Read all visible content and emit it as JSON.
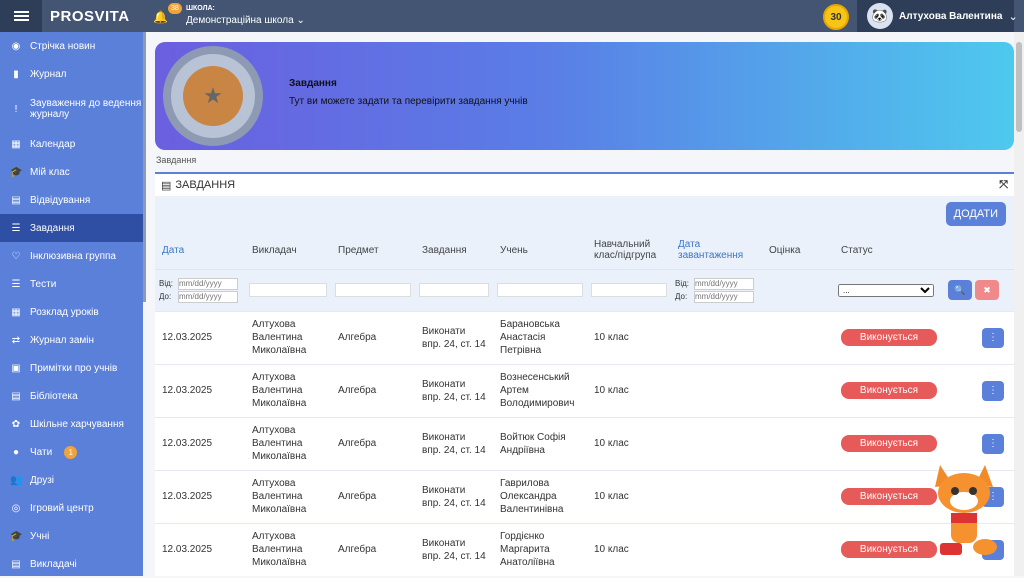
{
  "header": {
    "logo": "PROSVITA",
    "notifications": "38",
    "school_label": "ШКОЛА:",
    "school": "Демонстраційна школа",
    "coins": "30",
    "user": "Алтухова Валентина"
  },
  "sidebar": {
    "items": [
      {
        "label": "Стрічка новин",
        "icon": "rss-icon"
      },
      {
        "label": "Журнал",
        "icon": "bookmark-icon"
      },
      {
        "label": "Зауваження до ведення журналу",
        "icon": "exclamation-icon"
      },
      {
        "label": "Календар",
        "icon": "calendar-icon"
      },
      {
        "label": "Мій клас",
        "icon": "graduation-cap-icon"
      },
      {
        "label": "Відвідування",
        "icon": "book-icon"
      },
      {
        "label": "Завдання",
        "icon": "list-icon",
        "active": true
      },
      {
        "label": "Інклюзивна группа",
        "icon": "hands-icon"
      },
      {
        "label": "Тести",
        "icon": "list-icon"
      },
      {
        "label": "Розклад уроків",
        "icon": "calendar-grid-icon"
      },
      {
        "label": "Журнал замін",
        "icon": "swap-icon"
      },
      {
        "label": "Примітки про учнів",
        "icon": "note-icon"
      },
      {
        "label": "Бібліотека",
        "icon": "book-icon"
      },
      {
        "label": "Шкільне харчування",
        "icon": "food-icon"
      },
      {
        "label": "Чати",
        "icon": "chat-icon",
        "badge": "1"
      },
      {
        "label": "Друзі",
        "icon": "users-icon"
      },
      {
        "label": "Ігровий центр",
        "icon": "gamepad-icon"
      },
      {
        "label": "Учні",
        "icon": "graduation-cap-icon"
      },
      {
        "label": "Викладачі",
        "icon": "book-icon"
      }
    ]
  },
  "banner": {
    "title": "Завдання",
    "subtitle": "Тут ви можете задати та перевірити завдання учнів"
  },
  "breadcrumb": "Завдання",
  "card": {
    "title": "ЗАВДАННЯ",
    "add": "ДОДАТИ"
  },
  "table": {
    "columns": [
      "Дата",
      "Викладач",
      "Предмет",
      "Завдання",
      "Учень",
      "Навчальний клас/підгрупа",
      "Дата завантаження",
      "Оцінка",
      "Статус"
    ],
    "filter": {
      "from": "Від:",
      "to": "До:",
      "date_placeholder": "mm/dd/yyyy",
      "status_select": "..."
    },
    "rows": [
      {
        "date": "12.03.2025",
        "teacher": "Алтухова Валентина Миколаївна",
        "subject": "Алгебра",
        "task": "Виконати впр. 24, ст. 14",
        "student": "Барановська Анастасія Петрівна",
        "class": "10 клас",
        "status": "Виконується"
      },
      {
        "date": "12.03.2025",
        "teacher": "Алтухова Валентина Миколаївна",
        "subject": "Алгебра",
        "task": "Виконати впр. 24, ст. 14",
        "student": "Вознесенський Артем Володимирович",
        "class": "10 клас",
        "status": "Виконується"
      },
      {
        "date": "12.03.2025",
        "teacher": "Алтухова Валентина Миколаївна",
        "subject": "Алгебра",
        "task": "Виконати впр. 24, ст. 14",
        "student": "Войтюк Софія Андріївна",
        "class": "10 клас",
        "status": "Виконується"
      },
      {
        "date": "12.03.2025",
        "teacher": "Алтухова Валентина Миколаївна",
        "subject": "Алгебра",
        "task": "Виконати впр. 24, ст. 14",
        "student": "Гаврилова Олександра Валентинівна",
        "class": "10 клас",
        "status": "Виконується"
      },
      {
        "date": "12.03.2025",
        "teacher": "Алтухова Валентина Миколаївна",
        "subject": "Алгебра",
        "task": "Виконати впр. 24, ст. 14",
        "student": "Гордієнко Маргарита Анатоліївна",
        "class": "10 клас",
        "status": "Виконується"
      }
    ]
  },
  "colors": {
    "header": "#445573",
    "sidebar": "#5b80d9",
    "sidebar_active": "#2f4fa5",
    "status": "#e75a5a",
    "accent": "#5b80d9"
  }
}
